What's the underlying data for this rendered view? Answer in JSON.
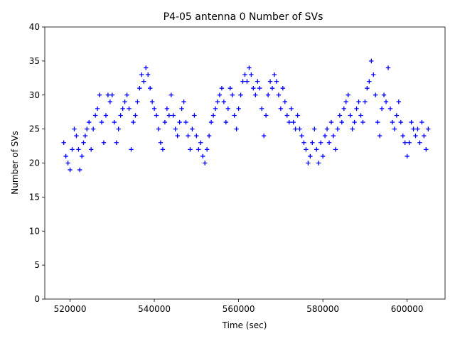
{
  "chart_data": {
    "type": "scatter",
    "title": "P4-05 antenna 0 Number of SVs",
    "xlabel": "Time (sec)",
    "ylabel": "Number of SVs",
    "xlim": [
      514000,
      609000
    ],
    "ylim": [
      0,
      40
    ],
    "xticks": [
      520000,
      540000,
      560000,
      580000,
      600000
    ],
    "yticks": [
      0,
      5,
      10,
      15,
      20,
      25,
      30,
      35,
      40
    ],
    "marker": "+",
    "color": "#0000ff",
    "grid": false,
    "series": [
      {
        "name": "",
        "points": [
          [
            518500,
            23
          ],
          [
            519000,
            21
          ],
          [
            519500,
            20
          ],
          [
            520000,
            19
          ],
          [
            520500,
            22
          ],
          [
            521000,
            25
          ],
          [
            521500,
            24
          ],
          [
            522000,
            22
          ],
          [
            522300,
            19
          ],
          [
            522800,
            21
          ],
          [
            523200,
            23
          ],
          [
            523600,
            24
          ],
          [
            524000,
            25
          ],
          [
            524500,
            26
          ],
          [
            525000,
            22
          ],
          [
            525500,
            25
          ],
          [
            526000,
            27
          ],
          [
            526500,
            28
          ],
          [
            527000,
            30
          ],
          [
            527500,
            26
          ],
          [
            528000,
            23
          ],
          [
            528500,
            27
          ],
          [
            529000,
            30
          ],
          [
            529500,
            29
          ],
          [
            530000,
            30
          ],
          [
            530500,
            26
          ],
          [
            531000,
            23
          ],
          [
            531500,
            25
          ],
          [
            532000,
            27
          ],
          [
            532500,
            28
          ],
          [
            533000,
            29
          ],
          [
            533500,
            30
          ],
          [
            534000,
            28
          ],
          [
            534500,
            22
          ],
          [
            535000,
            26
          ],
          [
            535500,
            27
          ],
          [
            536000,
            29
          ],
          [
            536500,
            31
          ],
          [
            537000,
            33
          ],
          [
            537500,
            32
          ],
          [
            538000,
            34
          ],
          [
            538500,
            33
          ],
          [
            539000,
            31
          ],
          [
            539500,
            29
          ],
          [
            540000,
            28
          ],
          [
            540500,
            27
          ],
          [
            541000,
            25
          ],
          [
            541500,
            23
          ],
          [
            542000,
            22
          ],
          [
            542500,
            26
          ],
          [
            543000,
            28
          ],
          [
            543500,
            27
          ],
          [
            544000,
            30
          ],
          [
            544500,
            27
          ],
          [
            545000,
            25
          ],
          [
            545500,
            24
          ],
          [
            546000,
            26
          ],
          [
            546500,
            28
          ],
          [
            547000,
            29
          ],
          [
            547500,
            26
          ],
          [
            548000,
            24
          ],
          [
            548500,
            22
          ],
          [
            549000,
            25
          ],
          [
            549500,
            27
          ],
          [
            550000,
            24
          ],
          [
            550500,
            22
          ],
          [
            551000,
            23
          ],
          [
            551500,
            21
          ],
          [
            552000,
            20
          ],
          [
            552500,
            22
          ],
          [
            553000,
            24
          ],
          [
            553500,
            26
          ],
          [
            554000,
            27
          ],
          [
            554500,
            28
          ],
          [
            555000,
            29
          ],
          [
            555500,
            30
          ],
          [
            556000,
            31
          ],
          [
            556500,
            29
          ],
          [
            557000,
            26
          ],
          [
            557500,
            28
          ],
          [
            558000,
            31
          ],
          [
            558500,
            30
          ],
          [
            559000,
            27
          ],
          [
            559500,
            25
          ],
          [
            560000,
            28
          ],
          [
            560500,
            30
          ],
          [
            561000,
            32
          ],
          [
            561500,
            33
          ],
          [
            562000,
            32
          ],
          [
            562500,
            34
          ],
          [
            563000,
            33
          ],
          [
            563500,
            31
          ],
          [
            564000,
            30
          ],
          [
            564500,
            32
          ],
          [
            565000,
            31
          ],
          [
            565500,
            28
          ],
          [
            566000,
            24
          ],
          [
            566500,
            27
          ],
          [
            567000,
            30
          ],
          [
            567500,
            32
          ],
          [
            568000,
            31
          ],
          [
            568500,
            33
          ],
          [
            569000,
            32
          ],
          [
            569500,
            30
          ],
          [
            570000,
            28
          ],
          [
            570500,
            31
          ],
          [
            571000,
            29
          ],
          [
            571500,
            27
          ],
          [
            572000,
            26
          ],
          [
            572500,
            28
          ],
          [
            573000,
            26
          ],
          [
            573500,
            25
          ],
          [
            574000,
            27
          ],
          [
            574500,
            25
          ],
          [
            575000,
            24
          ],
          [
            575500,
            23
          ],
          [
            576000,
            22
          ],
          [
            576500,
            20
          ],
          [
            577000,
            21
          ],
          [
            577500,
            23
          ],
          [
            578000,
            25
          ],
          [
            578500,
            22
          ],
          [
            579000,
            20
          ],
          [
            579500,
            23
          ],
          [
            580000,
            21
          ],
          [
            580500,
            24
          ],
          [
            581000,
            25
          ],
          [
            581500,
            23
          ],
          [
            582000,
            26
          ],
          [
            582500,
            24
          ],
          [
            583000,
            22
          ],
          [
            583500,
            25
          ],
          [
            584000,
            27
          ],
          [
            584500,
            26
          ],
          [
            585000,
            28
          ],
          [
            585500,
            29
          ],
          [
            586000,
            30
          ],
          [
            586500,
            27
          ],
          [
            587000,
            25
          ],
          [
            587500,
            26
          ],
          [
            588000,
            28
          ],
          [
            588500,
            29
          ],
          [
            589000,
            27
          ],
          [
            589500,
            26
          ],
          [
            590000,
            29
          ],
          [
            590500,
            31
          ],
          [
            591000,
            32
          ],
          [
            591500,
            35
          ],
          [
            592000,
            33
          ],
          [
            592500,
            30
          ],
          [
            593000,
            26
          ],
          [
            593500,
            24
          ],
          [
            594000,
            28
          ],
          [
            594500,
            30
          ],
          [
            595000,
            29
          ],
          [
            595500,
            34
          ],
          [
            596000,
            28
          ],
          [
            596500,
            26
          ],
          [
            597000,
            25
          ],
          [
            597500,
            27
          ],
          [
            598000,
            29
          ],
          [
            598500,
            26
          ],
          [
            599000,
            24
          ],
          [
            599500,
            23
          ],
          [
            600000,
            21
          ],
          [
            600500,
            23
          ],
          [
            601000,
            26
          ],
          [
            601500,
            25
          ],
          [
            602000,
            24
          ],
          [
            602500,
            25
          ],
          [
            603000,
            23
          ],
          [
            603500,
            26
          ],
          [
            604000,
            24
          ],
          [
            604500,
            22
          ],
          [
            605000,
            25
          ]
        ]
      }
    ]
  }
}
